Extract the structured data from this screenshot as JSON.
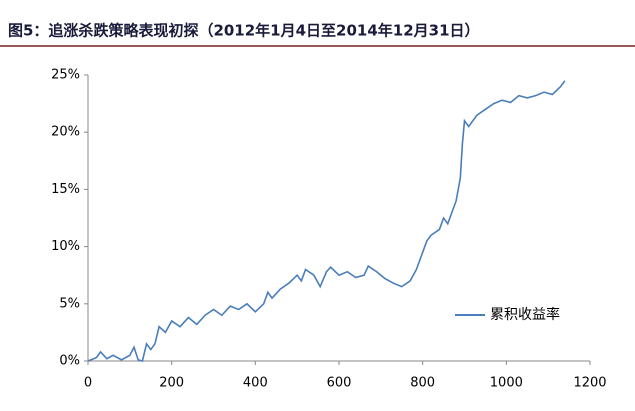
{
  "chart_data": {
    "type": "line",
    "title": "图5：追涨杀跌策略表现初探（2012年1月4日至2014年12月31日）",
    "x": [
      0,
      20,
      30,
      45,
      60,
      80,
      100,
      110,
      120,
      130,
      140,
      150,
      160,
      170,
      185,
      200,
      220,
      240,
      260,
      280,
      300,
      320,
      340,
      360,
      380,
      400,
      420,
      430,
      440,
      460,
      480,
      500,
      510,
      520,
      540,
      555,
      570,
      580,
      600,
      620,
      640,
      660,
      670,
      690,
      710,
      730,
      750,
      770,
      785,
      800,
      810,
      820,
      840,
      850,
      860,
      870,
      880,
      890,
      895,
      900,
      910,
      930,
      950,
      970,
      990,
      1010,
      1030,
      1050,
      1070,
      1090,
      1110,
      1130,
      1140
    ],
    "series": [
      {
        "name": "累积收益率",
        "color": "#4a7ebb",
        "values": [
          0,
          0.3,
          0.8,
          0.2,
          0.5,
          0.1,
          0.5,
          1.2,
          0.1,
          0.0,
          1.5,
          1.0,
          1.5,
          3.0,
          2.5,
          3.5,
          3.0,
          3.8,
          3.2,
          4.0,
          4.5,
          4.0,
          4.8,
          4.5,
          5.0,
          4.3,
          5.0,
          6.0,
          5.5,
          6.3,
          6.8,
          7.5,
          7.0,
          8.0,
          7.5,
          6.5,
          7.8,
          8.2,
          7.5,
          7.8,
          7.3,
          7.5,
          8.3,
          7.8,
          7.2,
          6.8,
          6.5,
          7.0,
          8.0,
          9.5,
          10.5,
          11.0,
          11.5,
          12.5,
          12.0,
          13.0,
          14.0,
          16.0,
          19.0,
          21.0,
          20.5,
          21.5,
          22.0,
          22.5,
          22.8,
          22.6,
          23.2,
          23.0,
          23.2,
          23.5,
          23.3,
          24.0,
          24.5
        ]
      }
    ],
    "xlim": [
      0,
      1200
    ],
    "xticks": [
      0,
      200,
      400,
      600,
      800,
      1000,
      1200
    ],
    "ylim": [
      0,
      25
    ],
    "yticks": [
      {
        "value": 0,
        "label": "0%"
      },
      {
        "value": 5,
        "label": "5%"
      },
      {
        "value": 10,
        "label": "10%"
      },
      {
        "value": 15,
        "label": "15%"
      },
      {
        "value": 20,
        "label": "20%"
      },
      {
        "value": 25,
        "label": "25%"
      }
    ],
    "grid": false,
    "legend": "lower-right"
  }
}
